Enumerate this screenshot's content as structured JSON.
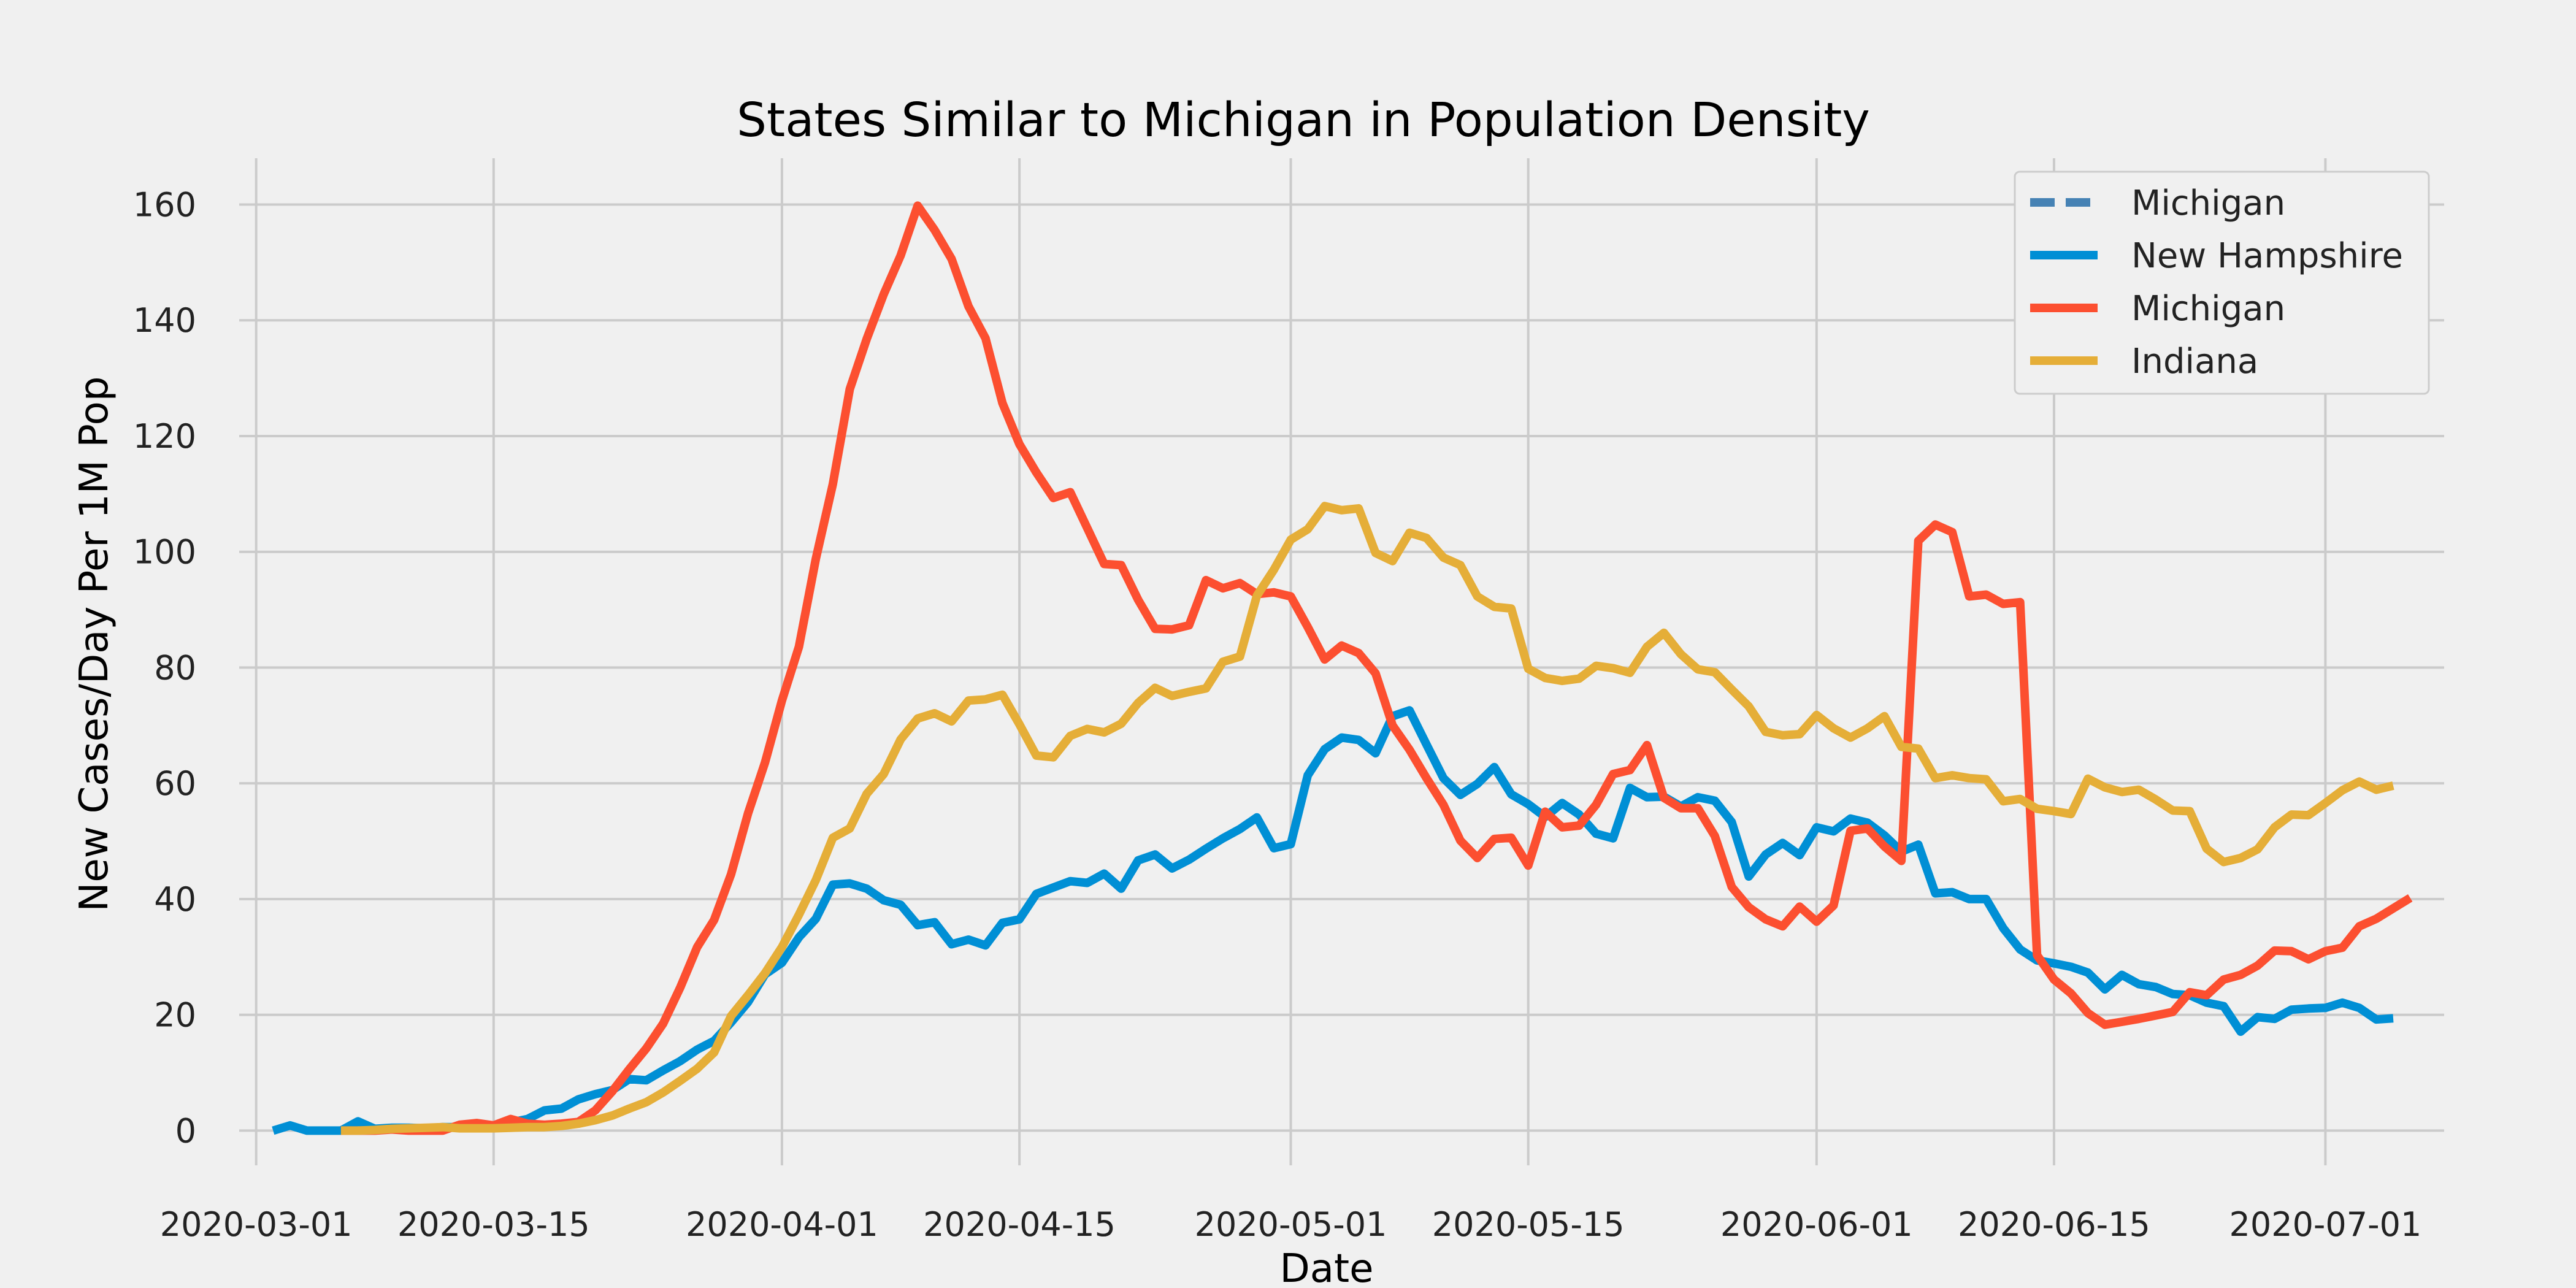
{
  "chart_data": {
    "type": "line",
    "title": "States Similar to Michigan in Population Density",
    "xlabel": "Date",
    "ylabel": "New Cases/Day Per 1M Pop",
    "x_start": "2020-02-29",
    "x_end": "2020-07-08",
    "x_ticks": [
      "2020-03-01",
      "2020-03-15",
      "2020-04-01",
      "2020-04-15",
      "2020-05-01",
      "2020-05-15",
      "2020-06-01",
      "2020-06-15",
      "2020-07-01"
    ],
    "ylim": [
      -6,
      168
    ],
    "y_ticks": [
      0,
      20,
      40,
      60,
      80,
      100,
      120,
      140,
      160
    ],
    "grid": true,
    "legend_position": "top-right",
    "series": [
      {
        "name": "Michigan",
        "color": "#4682b4",
        "dashed": true,
        "x_start": "2020-03-02",
        "values": []
      },
      {
        "name": "New Hampshire",
        "color": "#008fd5",
        "dashed": false,
        "x_start": "2020-03-02",
        "values": [
          0,
          0.9,
          0,
          0,
          0,
          1.6,
          0.3,
          0.5,
          0.5,
          0.4,
          0.6,
          0.6,
          1,
          0.8,
          1.4,
          2,
          3.5,
          3.8,
          5.4,
          6.3,
          7,
          8.9,
          8.7,
          10.4,
          12,
          14,
          15.5,
          18.7,
          22.2,
          27,
          29,
          33.4,
          36.6,
          42.5,
          42.7,
          41.8,
          39.8,
          39,
          35.5,
          36,
          32.2,
          33,
          32,
          35.9,
          36.5,
          40.9,
          42,
          43.1,
          42.8,
          44.4,
          41.8,
          46.7,
          47.7,
          45.3,
          46.8,
          48.7,
          50.5,
          52.1,
          54.1,
          48.8,
          49.5,
          61.4,
          65.9,
          67.9,
          67.5,
          65.2,
          71.6,
          72.6,
          66.7,
          60.9,
          58,
          59.9,
          62.8,
          58.1,
          56.4,
          54.2,
          56.6,
          54.6,
          51.3,
          50.5,
          59.2,
          57.6,
          57.7,
          56,
          57.6,
          57,
          53.3,
          43.9,
          47.7,
          49.7,
          47.6,
          52.4,
          51.7,
          53.9,
          53.2,
          51,
          48.2,
          49.4,
          41,
          41.2,
          40,
          40,
          35,
          31.3,
          29.4,
          28.9,
          28.3,
          27.3,
          24.4,
          26.9,
          25.3,
          24.8,
          23.6,
          23.4,
          22.1,
          21.5,
          17.1,
          19.6,
          19.3,
          20.9,
          21.1,
          21.2,
          22.1,
          21.2,
          19.2,
          19.4
        ]
      },
      {
        "name": "Michigan",
        "color": "#fc4f30",
        "dashed": false,
        "x_start": "2020-03-06",
        "values": [
          0,
          0,
          0,
          0.2,
          0,
          0,
          0,
          1,
          1.3,
          0.9,
          2,
          1.2,
          1,
          1.2,
          1.5,
          3.5,
          6.8,
          10.6,
          14.2,
          18.5,
          24.7,
          31.7,
          36.4,
          44.3,
          54.8,
          63.6,
          74.3,
          83.6,
          98.8,
          111.7,
          128.1,
          136.8,
          144.5,
          151.2,
          159.8,
          155.6,
          150.6,
          142.4,
          136.9,
          125.7,
          118.6,
          113.7,
          109.3,
          110.3,
          104.1,
          97.9,
          97.7,
          91.7,
          86.7,
          86.6,
          87.3,
          95.1,
          93.7,
          94.6,
          92.7,
          93,
          92.3,
          87,
          81.4,
          83.8,
          82.5,
          79,
          70,
          65.8,
          60.9,
          56.3,
          50.1,
          47.1,
          50.4,
          50.6,
          45.8,
          55.1,
          52.4,
          52.7,
          56.3,
          61.6,
          62.3,
          66.6,
          57.5,
          55.7,
          55.7,
          50.9,
          42.1,
          38.6,
          36.5,
          35.3,
          38.7,
          36.1,
          38.9,
          51.8,
          52.2,
          49.1,
          46.6,
          101.9,
          104.7,
          103.4,
          92.3,
          92.6,
          91,
          91.3,
          30.3,
          26.1,
          23.7,
          20.3,
          18.3,
          18.8,
          19.3,
          19.9,
          20.5,
          23.9,
          23.4,
          26.1,
          26.9,
          28.5,
          31.1,
          31,
          29.6,
          31,
          31.6,
          35.3,
          36.6,
          38.4,
          40.2
        ]
      },
      {
        "name": "Indiana",
        "color": "#e5ae38",
        "dashed": false,
        "x_start": "2020-03-06",
        "values": [
          0,
          0,
          0.1,
          0.3,
          0.4,
          0.5,
          0.6,
          0.4,
          0.4,
          0.4,
          0.5,
          0.6,
          0.6,
          0.8,
          1.2,
          1.8,
          2.6,
          3.8,
          4.9,
          6.6,
          8.6,
          10.7,
          13.5,
          19.8,
          23.4,
          27.2,
          31.7,
          37.3,
          43.3,
          50.6,
          52.2,
          58.2,
          61.6,
          67.6,
          71.2,
          72.1,
          70.7,
          74.3,
          74.5,
          75.3,
          70.2,
          64.8,
          64.5,
          68.2,
          69.4,
          68.8,
          70.3,
          73.9,
          76.5,
          75.1,
          75.8,
          76.4,
          81,
          81.9,
          92.4,
          96.9,
          102.1,
          103.9,
          107.9,
          107.2,
          107.5,
          99.8,
          98.4,
          103.3,
          102.4,
          99,
          97.7,
          92.3,
          90.5,
          90.2,
          79.8,
          78.2,
          77.7,
          78.1,
          80.3,
          79.9,
          79.1,
          83.6,
          86,
          82.3,
          79.7,
          79.2,
          76.2,
          73.3,
          68.9,
          68.3,
          68.5,
          71.8,
          69.5,
          67.9,
          69.5,
          71.6,
          66.3,
          66,
          60.9,
          61.4,
          60.9,
          60.7,
          56.9,
          57.3,
          55.6,
          55.2,
          54.7,
          60.8,
          59.3,
          58.5,
          58.9,
          57.2,
          55.3,
          55.2,
          48.7,
          46.4,
          47.1,
          48.6,
          52.4,
          54.6,
          54.5,
          56.6,
          58.8,
          60.3,
          58.9,
          59.6
        ]
      }
    ]
  }
}
